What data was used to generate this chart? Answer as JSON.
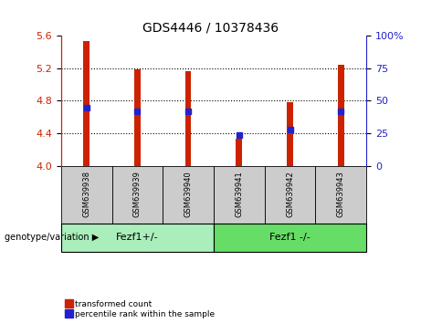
{
  "title": "GDS4446 / 10378436",
  "samples": [
    "GSM639938",
    "GSM639939",
    "GSM639940",
    "GSM639941",
    "GSM639942",
    "GSM639943"
  ],
  "red_values": [
    5.535,
    5.185,
    5.165,
    4.33,
    4.78,
    5.24
  ],
  "blue_values": [
    4.72,
    4.675,
    4.675,
    4.38,
    4.45,
    4.675
  ],
  "ylim": [
    4.0,
    5.6
  ],
  "yticks_left": [
    4.0,
    4.4,
    4.8,
    5.2,
    5.6
  ],
  "yticks_right_labels": [
    "0",
    "25",
    "50",
    "75",
    "100%"
  ],
  "yticks_right_vals": [
    4.0,
    4.4,
    4.8,
    5.2,
    5.6
  ],
  "group1_label": "Fezf1+/-",
  "group2_label": "Fezf1 -/-",
  "group1_indices": [
    0,
    1,
    2
  ],
  "group2_indices": [
    3,
    4,
    5
  ],
  "genotype_label": "genotype/variation",
  "legend_red": "transformed count",
  "legend_blue": "percentile rank within the sample",
  "bar_color": "#cc2200",
  "dot_color": "#2222cc",
  "group1_color": "#aaeebb",
  "group2_color": "#66dd66",
  "sample_area_color": "#cccccc",
  "left_axis_color": "#cc2200",
  "right_axis_color": "#2222cc"
}
